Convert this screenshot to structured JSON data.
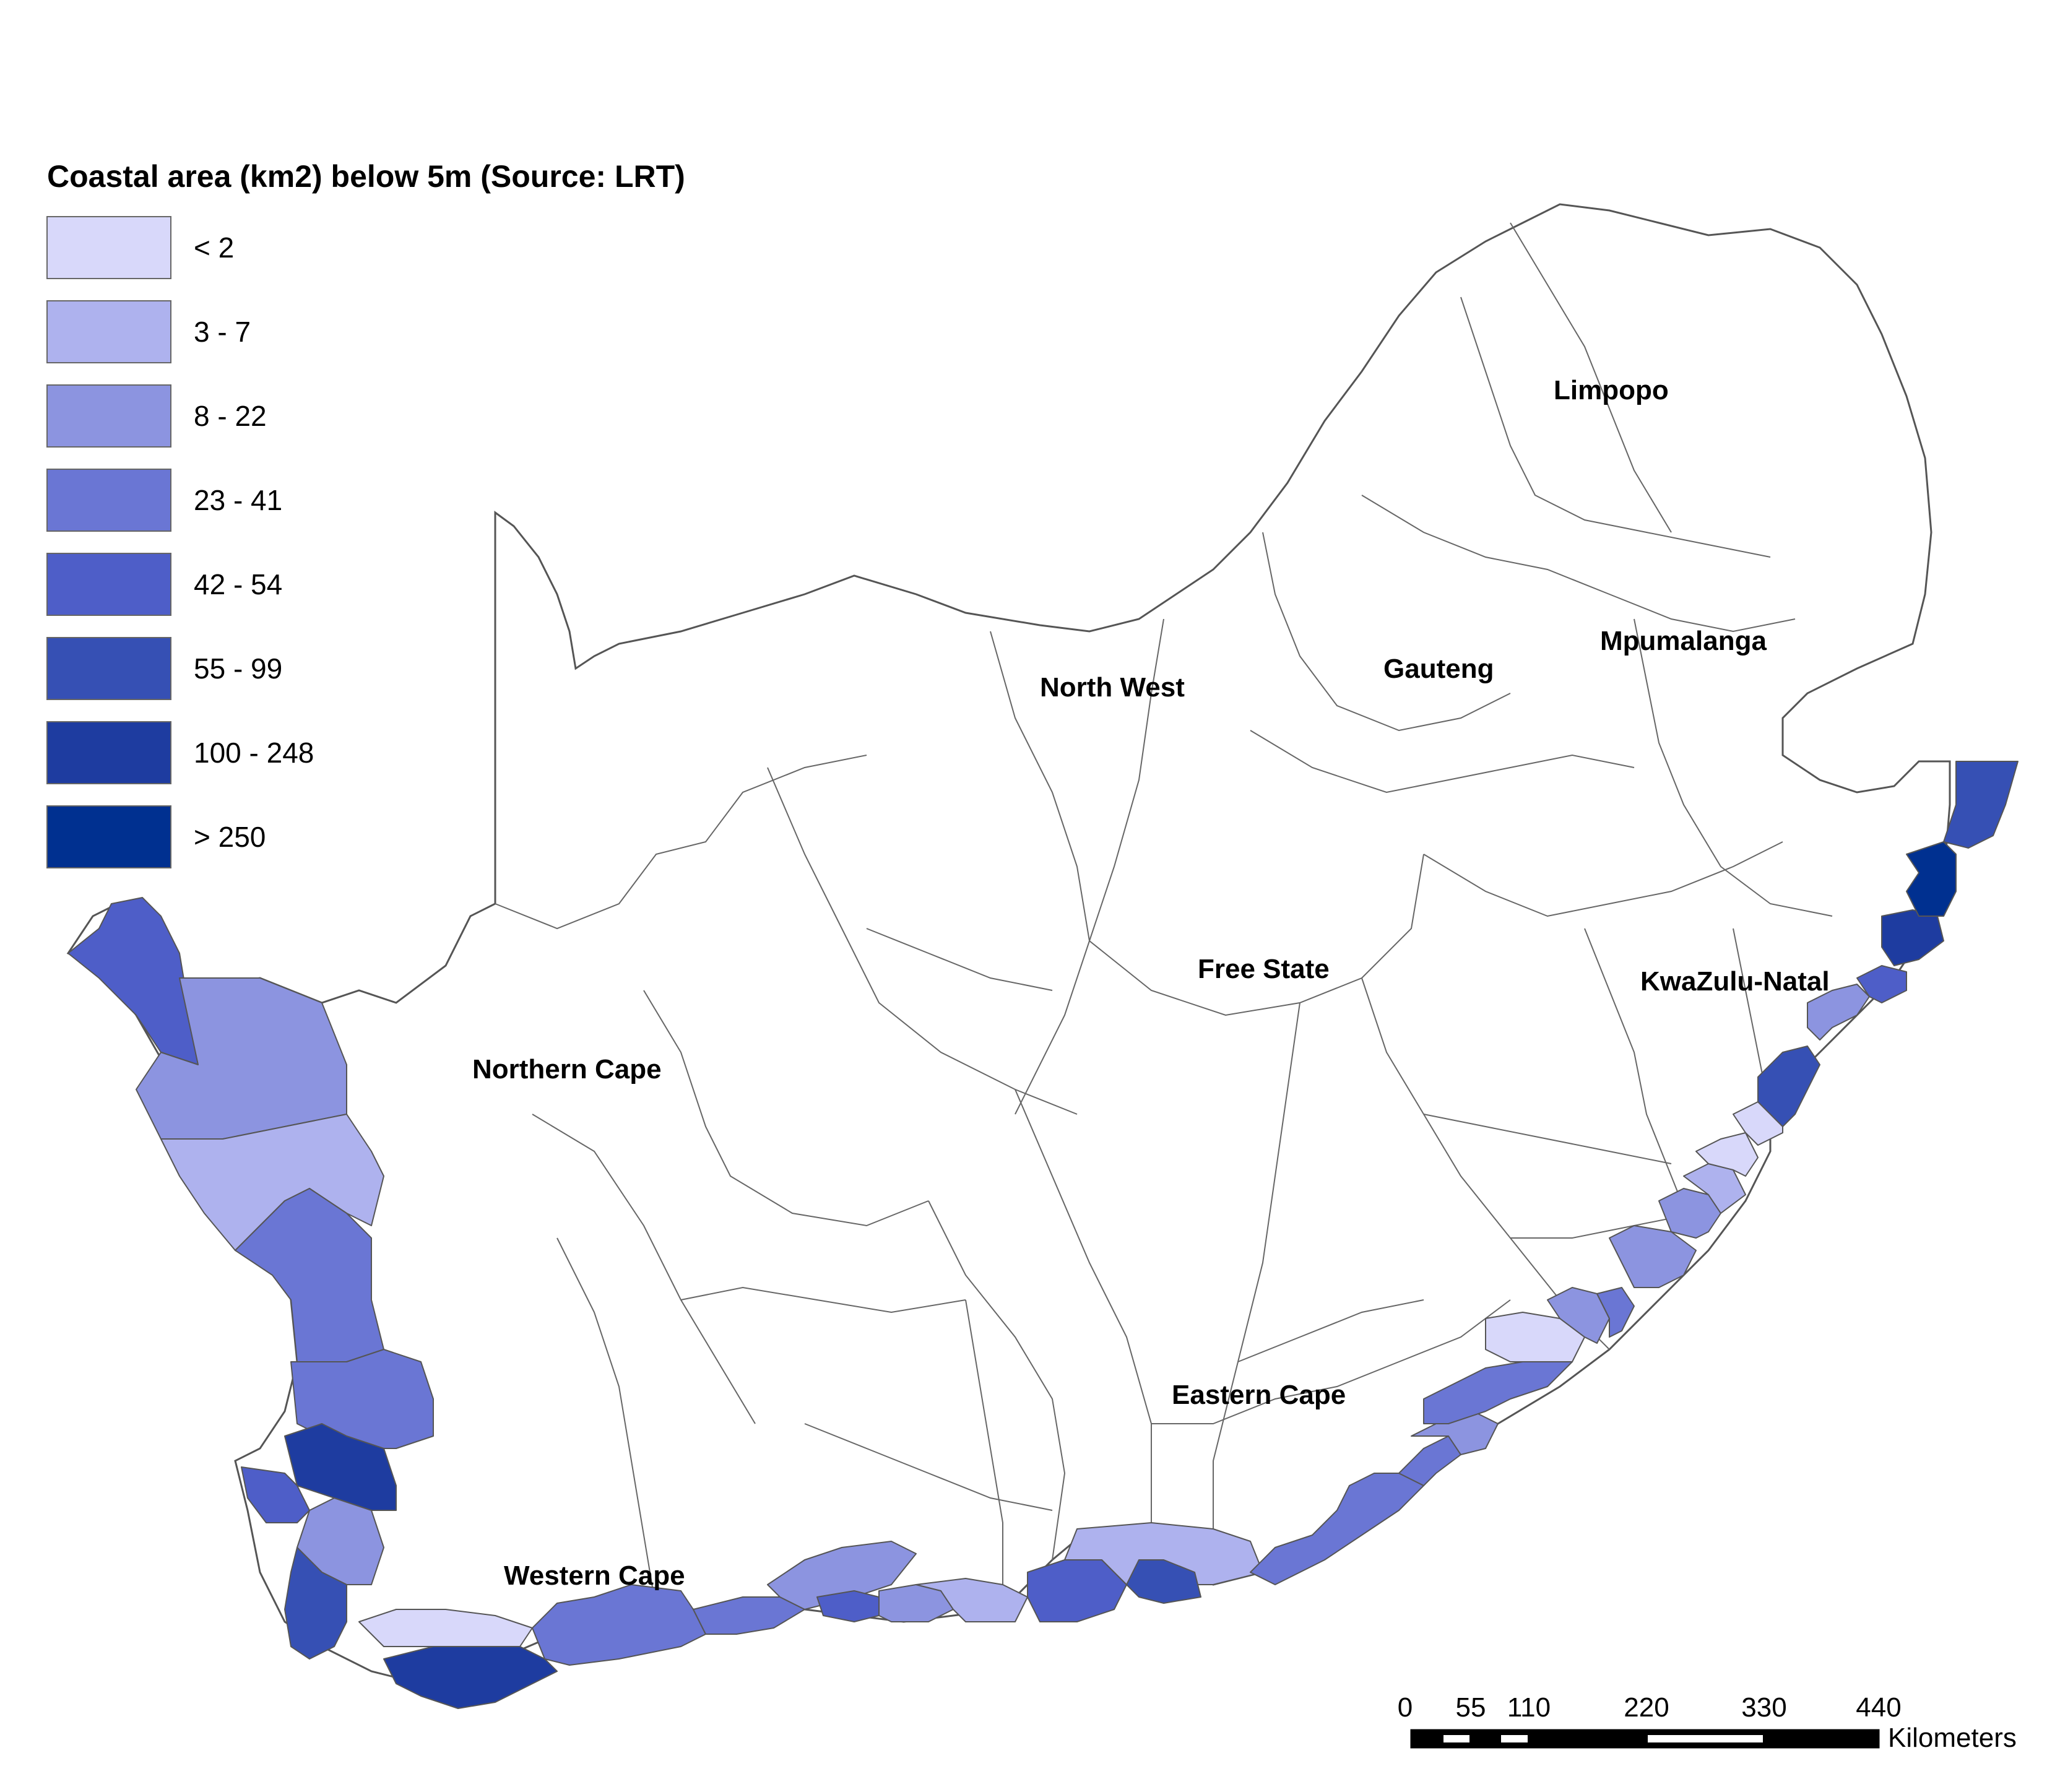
{
  "legend": {
    "title": "Coastal area (km2) below 5m (Source: LRT)",
    "classes": [
      {
        "label": "< 2",
        "color": "#d8d8fa"
      },
      {
        "label": "3 - 7",
        "color": "#aeb2ee"
      },
      {
        "label": "8 - 22",
        "color": "#8c94e0"
      },
      {
        "label": "23 - 41",
        "color": "#6a76d4"
      },
      {
        "label": "42 - 54",
        "color": "#4e5ec8"
      },
      {
        "label": "55 - 99",
        "color": "#3650b4"
      },
      {
        "label": "100 - 248",
        "color": "#1e3ca0"
      },
      {
        "label": "> 250",
        "color": "#003090"
      }
    ]
  },
  "provinces": {
    "limpopo": "Limpopo",
    "north_west": "North West",
    "gauteng": "Gauteng",
    "mpumalanga": "Mpumalanga",
    "free_state": "Free State",
    "kwazulu_natal": "KwaZulu-Natal",
    "northern_cape": "Northern Cape",
    "eastern_cape": "Eastern Cape",
    "western_cape": "Western Cape"
  },
  "scale_bar": {
    "ticks": [
      "0",
      "55",
      "110",
      "220",
      "330",
      "440"
    ],
    "unit": "Kilometers"
  }
}
